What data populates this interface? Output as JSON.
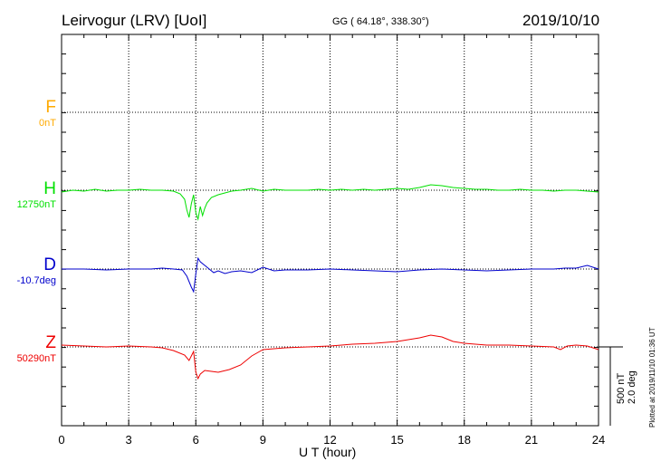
{
  "header": {
    "station": "Leirvogur (LRV)  [UoI]",
    "coordinates": "GG ( 64.18°, 338.30°)",
    "date": "2019/10/10"
  },
  "chart_data": {
    "type": "line",
    "xlabel": "U T (hour)",
    "xlim": [
      0,
      24
    ],
    "xticks": [
      0,
      3,
      6,
      9,
      12,
      15,
      18,
      21,
      24
    ],
    "grid": true,
    "scale_bar": {
      "nt": "500 nT",
      "deg": "2.0 deg"
    },
    "series": [
      {
        "name": "F",
        "baseline_label": "0nT",
        "color": "#ffaa00",
        "points": []
      },
      {
        "name": "H",
        "baseline_label": "12750nT",
        "color": "#00e000",
        "points": [
          [
            0,
            -2
          ],
          [
            0.5,
            0
          ],
          [
            1,
            -1
          ],
          [
            1.5,
            1
          ],
          [
            2,
            -1
          ],
          [
            2.5,
            0
          ],
          [
            3,
            0
          ],
          [
            3.5,
            1
          ],
          [
            4,
            0
          ],
          [
            4.5,
            0
          ],
          [
            5,
            -1
          ],
          [
            5.3,
            -4
          ],
          [
            5.5,
            -10
          ],
          [
            5.6,
            -22
          ],
          [
            5.7,
            -30
          ],
          [
            5.8,
            -15
          ],
          [
            5.9,
            -5
          ],
          [
            6,
            -25
          ],
          [
            6.1,
            -32
          ],
          [
            6.2,
            -18
          ],
          [
            6.3,
            -28
          ],
          [
            6.4,
            -20
          ],
          [
            6.5,
            -14
          ],
          [
            6.7,
            -8
          ],
          [
            7,
            -5
          ],
          [
            7.3,
            -3
          ],
          [
            7.6,
            -1
          ],
          [
            8,
            0
          ],
          [
            8.5,
            2
          ],
          [
            9,
            -1
          ],
          [
            9.5,
            1
          ],
          [
            10,
            0
          ],
          [
            10.5,
            0
          ],
          [
            11,
            0
          ],
          [
            11.5,
            1
          ],
          [
            12,
            0
          ],
          [
            12.5,
            1
          ],
          [
            13,
            0
          ],
          [
            13.5,
            1
          ],
          [
            14,
            0
          ],
          [
            14.5,
            1
          ],
          [
            15,
            2
          ],
          [
            15.5,
            1
          ],
          [
            16,
            3
          ],
          [
            16.5,
            6
          ],
          [
            17,
            5
          ],
          [
            17.5,
            3
          ],
          [
            18,
            2
          ],
          [
            18.5,
            1
          ],
          [
            19,
            1
          ],
          [
            19.5,
            0
          ],
          [
            20,
            0
          ],
          [
            20.5,
            1
          ],
          [
            21,
            0
          ],
          [
            21.5,
            0
          ],
          [
            22,
            -1
          ],
          [
            22.5,
            0
          ],
          [
            23,
            0
          ],
          [
            23.5,
            -1
          ],
          [
            24,
            -2
          ]
        ]
      },
      {
        "name": "D",
        "baseline_label": "-10.7deg",
        "color": "#0000cc",
        "points": [
          [
            0,
            0
          ],
          [
            1,
            0
          ],
          [
            2,
            -1
          ],
          [
            3,
            0
          ],
          [
            4,
            0
          ],
          [
            4.5,
            1
          ],
          [
            5,
            0
          ],
          [
            5.4,
            -1
          ],
          [
            5.6,
            -8
          ],
          [
            5.8,
            -20
          ],
          [
            5.9,
            -25
          ],
          [
            6,
            -5
          ],
          [
            6.1,
            12
          ],
          [
            6.2,
            8
          ],
          [
            6.5,
            2
          ],
          [
            6.8,
            -4
          ],
          [
            7,
            -2
          ],
          [
            7.3,
            -5
          ],
          [
            7.6,
            -3
          ],
          [
            8,
            -2
          ],
          [
            8.5,
            -4
          ],
          [
            9,
            2
          ],
          [
            9.5,
            -2
          ],
          [
            10,
            -1
          ],
          [
            11,
            -1
          ],
          [
            12,
            0
          ],
          [
            13,
            -1
          ],
          [
            14,
            -2
          ],
          [
            15,
            -3
          ],
          [
            15.5,
            -2
          ],
          [
            16,
            -1
          ],
          [
            17,
            0
          ],
          [
            18,
            -1
          ],
          [
            19,
            -2
          ],
          [
            20,
            -1
          ],
          [
            21,
            0
          ],
          [
            22,
            0
          ],
          [
            22.5,
            1
          ],
          [
            23,
            1
          ],
          [
            23.5,
            4
          ],
          [
            24,
            0
          ]
        ]
      },
      {
        "name": "Z",
        "baseline_label": "50290nT",
        "color": "#ee0000",
        "points": [
          [
            0,
            2
          ],
          [
            1,
            1
          ],
          [
            2,
            0
          ],
          [
            3,
            1
          ],
          [
            4,
            0
          ],
          [
            4.5,
            -1
          ],
          [
            5,
            -4
          ],
          [
            5.5,
            -9
          ],
          [
            5.7,
            -15
          ],
          [
            5.8,
            -10
          ],
          [
            5.9,
            -5
          ],
          [
            6,
            -28
          ],
          [
            6.1,
            -35
          ],
          [
            6.2,
            -30
          ],
          [
            6.4,
            -26
          ],
          [
            6.7,
            -27
          ],
          [
            7,
            -28
          ],
          [
            7.5,
            -25
          ],
          [
            8,
            -20
          ],
          [
            8.5,
            -10
          ],
          [
            9,
            -3
          ],
          [
            9.5,
            -2
          ],
          [
            10,
            -1
          ],
          [
            11,
            0
          ],
          [
            12,
            1
          ],
          [
            13,
            3
          ],
          [
            14,
            4
          ],
          [
            15,
            6
          ],
          [
            16,
            10
          ],
          [
            16.5,
            13
          ],
          [
            17,
            11
          ],
          [
            17.5,
            6
          ],
          [
            18,
            4
          ],
          [
            18.5,
            3
          ],
          [
            19,
            2
          ],
          [
            20,
            2
          ],
          [
            21,
            1
          ],
          [
            22,
            0
          ],
          [
            22.3,
            -3
          ],
          [
            22.6,
            1
          ],
          [
            23,
            2
          ],
          [
            23.5,
            1
          ],
          [
            24,
            -3
          ]
        ]
      }
    ]
  },
  "footer": {
    "plotted": "Plotted at 2019/11/10 01:36 UT"
  }
}
